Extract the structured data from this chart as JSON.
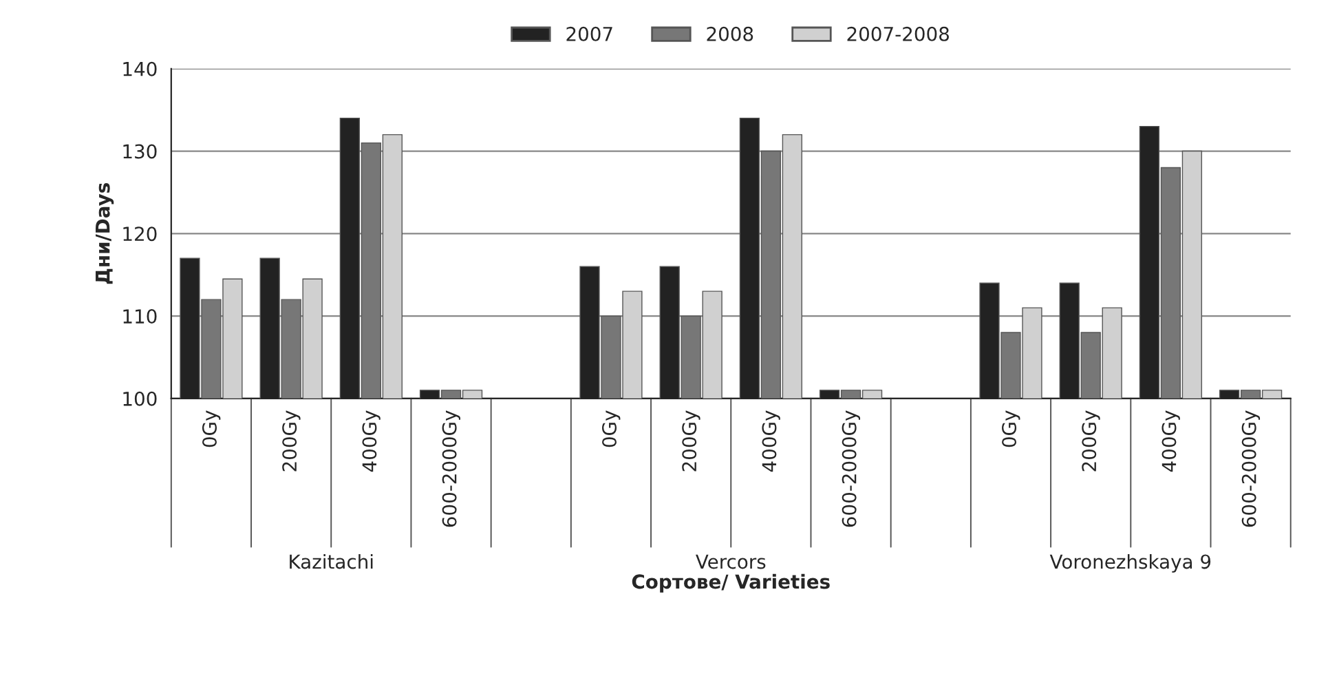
{
  "chart_data": {
    "type": "bar",
    "xlabel": "Сортове/ Varieties",
    "ylabel": "Дни/Days",
    "categories": [
      "0Gy",
      "200Gy",
      "400Gy",
      "600-2000Gy",
      null,
      "0Gy",
      "200Gy",
      "400Gy",
      "600-2000Gy",
      null,
      "0Gy",
      "200Gy",
      "400Gy",
      "600-2000Gy"
    ],
    "series": [
      {
        "name": "2007",
        "color": "#222222",
        "values": [
          117,
          117,
          134,
          101,
          null,
          116,
          116,
          134,
          101,
          null,
          114,
          114,
          133,
          101
        ]
      },
      {
        "name": "2008",
        "color": "#777777",
        "values": [
          112,
          112,
          131,
          101,
          null,
          110,
          110,
          130,
          101,
          null,
          108,
          108,
          128,
          101
        ]
      },
      {
        "name": "2007-2008",
        "color": "#d0d0d0",
        "values": [
          114.5,
          114.5,
          132,
          101,
          null,
          113,
          113,
          132,
          101,
          null,
          111,
          111,
          130,
          101
        ]
      }
    ],
    "annotations": [
      "Kazitachi",
      "Vercors",
      "Voronezhskaya 9"
    ],
    "ylim": [
      100,
      140
    ],
    "yticks": [
      100,
      110,
      120,
      130,
      140
    ],
    "grid": "y",
    "legend": "top"
  }
}
